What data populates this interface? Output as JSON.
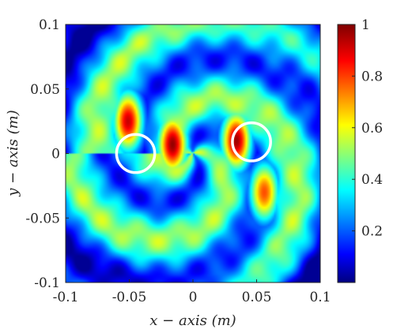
{
  "chart_data": {
    "type": "heatmap",
    "title": "",
    "xlabel": "x − axis (m)",
    "ylabel": "y − axis (m)",
    "xlim": [
      -0.1,
      0.1
    ],
    "ylim": [
      -0.1,
      0.1
    ],
    "x_ticks": [
      "-0.1",
      "-0.05",
      "0",
      "0.05",
      "0.1"
    ],
    "y_ticks": [
      "0.1",
      "0.05",
      "0",
      "-0.05",
      "-0.1"
    ],
    "colorbar": {
      "colormap": "jet",
      "range": [
        0,
        1
      ],
      "ticks": [
        "1",
        "0.8",
        "0.6",
        "0.4",
        "0.2"
      ]
    },
    "markers": [
      {
        "shape": "circle",
        "x": -0.045,
        "y": 0.0,
        "r": 0.015,
        "color": "#ffffff"
      },
      {
        "shape": "circle",
        "x": 0.046,
        "y": 0.009,
        "r": 0.015,
        "color": "#ffffff"
      }
    ],
    "hotspots": [
      {
        "x": -0.051,
        "y": 0.025,
        "value": 0.93
      },
      {
        "x": -0.016,
        "y": 0.007,
        "value": 0.98
      },
      {
        "x": 0.034,
        "y": 0.01,
        "value": 0.97
      },
      {
        "x": 0.056,
        "y": -0.03,
        "value": 0.8
      }
    ]
  }
}
